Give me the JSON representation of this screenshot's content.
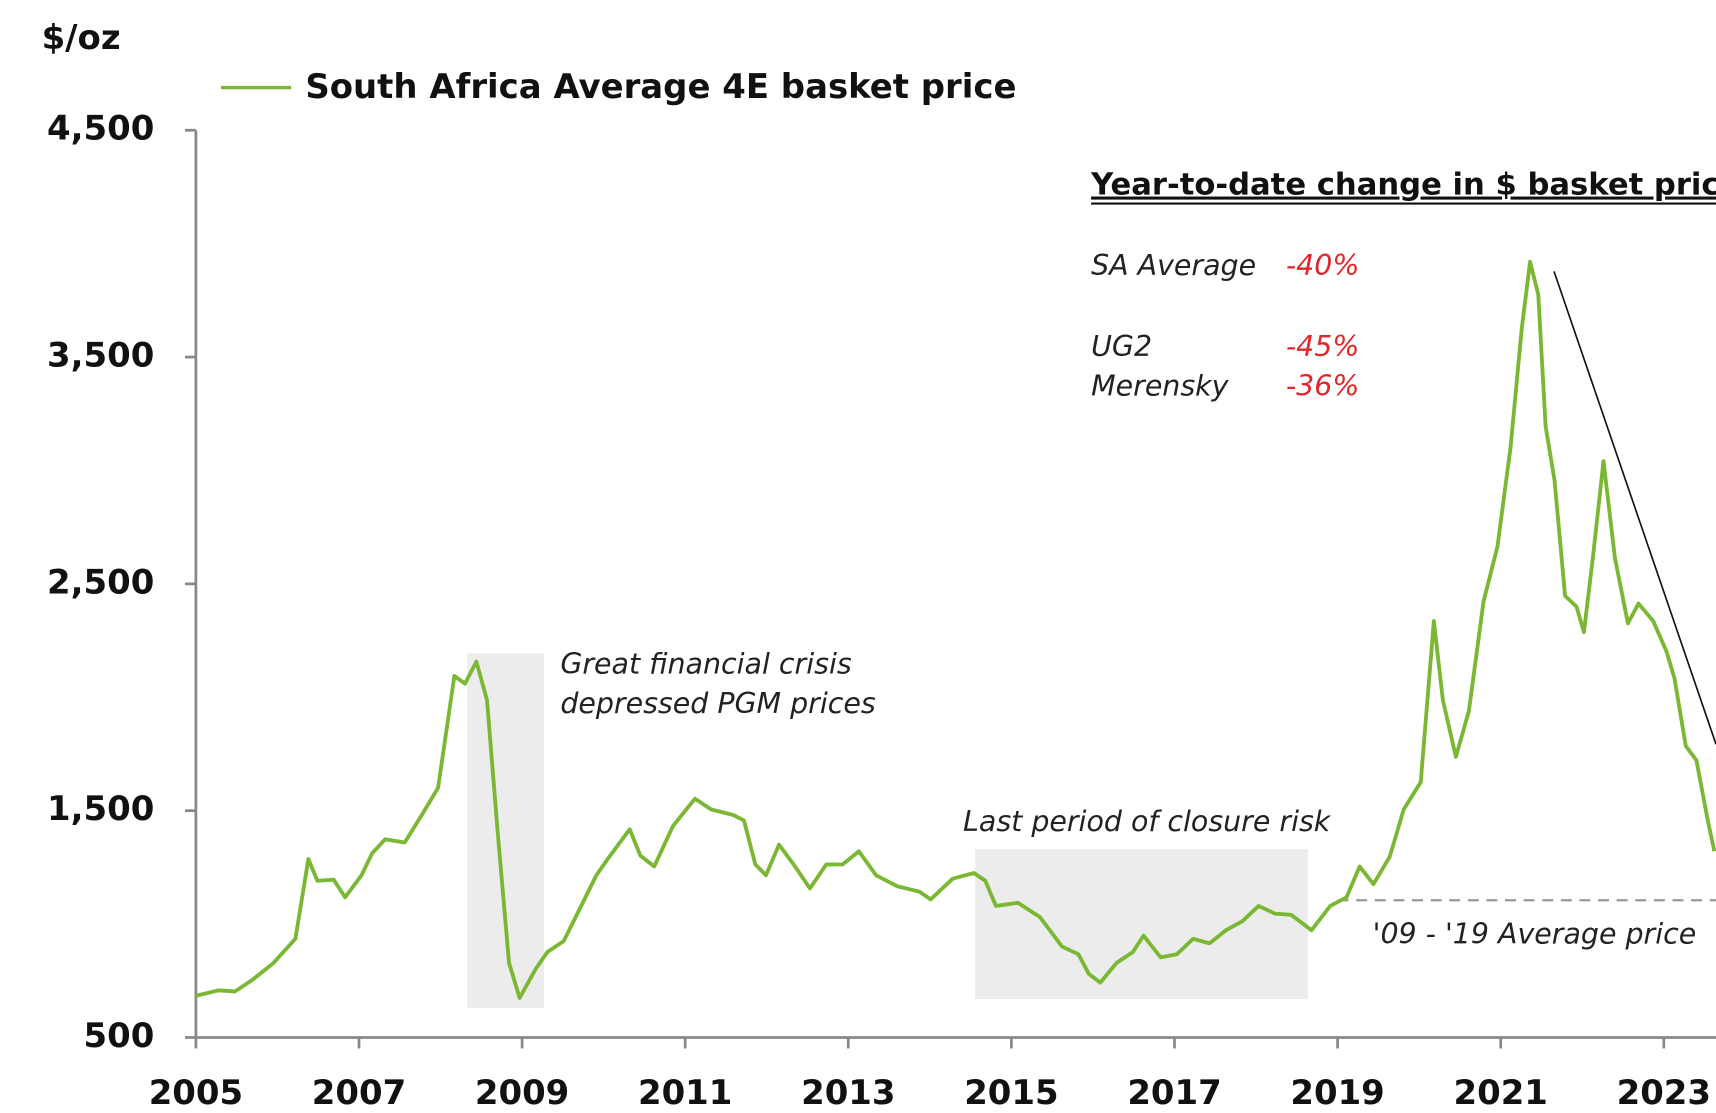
{
  "chart_data": {
    "type": "line",
    "y_unit": "$/oz",
    "x": [
      2005.0,
      2005.28,
      2005.48,
      2005.68,
      2005.95,
      2006.22,
      2006.38,
      2006.49,
      2006.69,
      2006.83,
      2007.03,
      2007.16,
      2007.32,
      2007.56,
      2007.77,
      2007.97,
      2008.17,
      2008.3,
      2008.44,
      2008.57,
      2008.7,
      2008.84,
      2008.97,
      2009.17,
      2009.31,
      2009.51,
      2009.71,
      2009.91,
      2010.05,
      2010.32,
      2010.45,
      2010.62,
      2010.85,
      2011.12,
      2011.32,
      2011.59,
      2011.72,
      2011.86,
      2011.99,
      2012.15,
      2012.33,
      2012.53,
      2012.73,
      2012.93,
      2013.13,
      2013.34,
      2013.6,
      2013.87,
      2014.01,
      2014.28,
      2014.54,
      2014.68,
      2014.81,
      2015.08,
      2015.35,
      2015.62,
      2015.82,
      2015.95,
      2016.09,
      2016.29,
      2016.49,
      2016.62,
      2016.83,
      2017.03,
      2017.23,
      2017.43,
      2017.63,
      2017.83,
      2018.03,
      2018.23,
      2018.43,
      2018.68,
      2018.91,
      2019.11,
      2019.27,
      2019.44,
      2019.64,
      2019.81,
      2020.02,
      2020.18,
      2020.29,
      2020.45,
      2020.61,
      2020.79,
      2020.96,
      2021.12,
      2021.26,
      2021.36,
      2021.46,
      2021.55,
      2021.66,
      2021.79,
      2021.93,
      2022.02,
      2022.13,
      2022.26,
      2022.4,
      2022.56,
      2022.69,
      2022.87,
      2023.03,
      2023.13,
      2023.27,
      2023.4,
      2023.54,
      2023.62
    ],
    "series": [
      {
        "name": "South Africa Average 4E basket price",
        "color": "#7ab833",
        "values": [
          684,
          708,
          703,
          751,
          828,
          935,
          1287,
          1191,
          1196,
          1118,
          1215,
          1312,
          1374,
          1360,
          1481,
          1601,
          2094,
          2060,
          2157,
          1988,
          1408,
          829,
          674,
          804,
          877,
          925,
          1070,
          1215,
          1287,
          1418,
          1302,
          1254,
          1432,
          1553,
          1505,
          1481,
          1457,
          1263,
          1215,
          1350,
          1263,
          1157,
          1263,
          1263,
          1321,
          1215,
          1167,
          1143,
          1109,
          1200,
          1225,
          1191,
          1080,
          1094,
          1031,
          901,
          867,
          780,
          742,
          829,
          877,
          949,
          853,
          867,
          935,
          915,
          973,
          1012,
          1080,
          1046,
          1041,
          973,
          1080,
          1118,
          1254,
          1176,
          1297,
          1505,
          1626,
          2336,
          1988,
          1737,
          1940,
          2423,
          2664,
          3099,
          3630,
          3920,
          3775,
          3196,
          2954,
          2447,
          2399,
          2287,
          2616,
          3041,
          2616,
          2326,
          2413,
          2336,
          2205,
          2085,
          1785,
          1722,
          1457,
          1321
        ]
      }
    ],
    "xlim": [
      2005,
      2023.64
    ],
    "xticks": [
      2005,
      2007,
      2009,
      2011,
      2013,
      2015,
      2017,
      2019,
      2021,
      2023
    ],
    "ylim": [
      500,
      4500
    ],
    "yticks": [
      500,
      {
        "value": 1500,
        "label": "1,500"
      },
      {
        "value": 2500,
        "label": "2,500"
      },
      {
        "value": 3500,
        "label": "3,500"
      },
      {
        "value": 4500,
        "label": "4,500"
      }
    ],
    "reference_line": {
      "value": 1105,
      "label": "'09 - '19 Average price",
      "start": 2019
    },
    "annotations": [
      [
        "Great financial crisis",
        "depressed PGM prices"
      ],
      [
        "Last period of closure risk"
      ]
    ],
    "ytd_table": {
      "title": "Year-to-date change in $ basket price",
      "rows": [
        [
          "SA Average",
          "-40%"
        ],
        [
          "UG2",
          "-45%"
        ],
        [
          "Merensky",
          "-36%"
        ]
      ]
    }
  }
}
